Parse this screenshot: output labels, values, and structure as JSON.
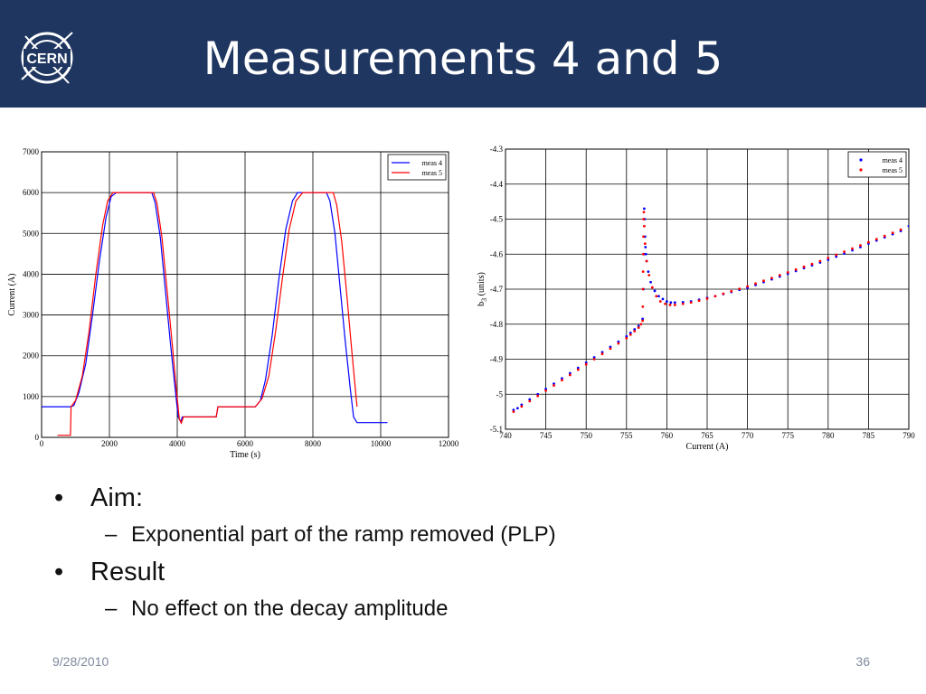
{
  "slide": {
    "title": "Measurements 4 and 5",
    "logo_text": "CERN",
    "footer_date": "9/28/2010",
    "page_number": "36"
  },
  "bullets": [
    {
      "text": "Aim:",
      "sub": "Exponential part of the ramp removed (PLP)"
    },
    {
      "text": "Result",
      "sub": "No effect on the decay amplitude"
    }
  ],
  "colors": {
    "header": "#1f3660",
    "meas4": "#0000ff",
    "meas5": "#ff0000"
  },
  "chart_data": [
    {
      "type": "line",
      "xlabel": "Time (s)",
      "ylabel": "Current (A)",
      "xlim": [
        0,
        12000
      ],
      "ylim": [
        0,
        7000
      ],
      "xticks": [
        0,
        2000,
        4000,
        6000,
        8000,
        10000,
        12000
      ],
      "yticks": [
        0,
        1000,
        2000,
        3000,
        4000,
        5000,
        6000,
        7000
      ],
      "grid": true,
      "legend_position": "top-right",
      "series": [
        {
          "name": "meas 4",
          "color": "#0000ff",
          "x": [
            0,
            850,
            950,
            1100,
            1300,
            1500,
            1700,
            1900,
            2050,
            2200,
            3250,
            3350,
            3500,
            3650,
            3800,
            3950,
            4030,
            4100,
            4150,
            5150,
            5200,
            5300,
            6300,
            6450,
            6600,
            6800,
            7000,
            7200,
            7400,
            7550,
            7650,
            8400,
            8500,
            8650,
            8800,
            8950,
            9100,
            9200,
            9300,
            10200
          ],
          "y": [
            750,
            750,
            780,
            1100,
            1800,
            3000,
            4300,
            5400,
            5900,
            6000,
            6000,
            5750,
            4900,
            3600,
            2300,
            1100,
            500,
            380,
            500,
            500,
            750,
            750,
            750,
            900,
            1400,
            2500,
            3900,
            5100,
            5800,
            6000,
            6000,
            6000,
            5800,
            5000,
            3700,
            2400,
            1200,
            500,
            360,
            360
          ]
        },
        {
          "name": "meas 5",
          "color": "#ff0000",
          "x": [
            470,
            850,
            870,
            1000,
            1200,
            1400,
            1600,
            1800,
            1950,
            2100,
            3300,
            3400,
            3550,
            3700,
            3850,
            3980,
            4060,
            4120,
            4180,
            5150,
            5200,
            5300,
            6300,
            6500,
            6700,
            6900,
            7100,
            7300,
            7500,
            7700,
            8600,
            8700,
            8850,
            9000,
            9150,
            9250,
            9300
          ],
          "y": [
            50,
            50,
            750,
            900,
            1500,
            2600,
            4000,
            5200,
            5800,
            6000,
            6000,
            5750,
            4900,
            3600,
            2300,
            1100,
            450,
            350,
            500,
            500,
            750,
            750,
            750,
            950,
            1500,
            2600,
            3900,
            5100,
            5800,
            6000,
            6000,
            5700,
            4800,
            3500,
            2100,
            1200,
            750
          ]
        }
      ]
    },
    {
      "type": "scatter",
      "xlabel": "Current (A)",
      "ylabel": "b3 (units)",
      "xlim": [
        740,
        790
      ],
      "ylim": [
        -5.1,
        -4.3
      ],
      "xticks": [
        740,
        745,
        750,
        755,
        760,
        765,
        770,
        775,
        780,
        785,
        790
      ],
      "yticks": [
        -5.1,
        -5,
        -4.9,
        -4.8,
        -4.7,
        -4.6,
        -4.5,
        -4.4,
        -4.3
      ],
      "grid": true,
      "legend_position": "top-right",
      "series": [
        {
          "name": "meas 4",
          "color": "#0000ff",
          "x": [
            741,
            741.5,
            742,
            743,
            744,
            745,
            746,
            747,
            748,
            749,
            750,
            751,
            752,
            753,
            754,
            755,
            755.5,
            756,
            756.5,
            757,
            757.1,
            757.15,
            757.2,
            757.25,
            757.3,
            757.35,
            757.4,
            757.5,
            757.7,
            758,
            758.5,
            759,
            759.5,
            760,
            760.5,
            761,
            762,
            763,
            764,
            765,
            766,
            767,
            768,
            769,
            770,
            771,
            772,
            773,
            774,
            775,
            776,
            777,
            778,
            779,
            780,
            781,
            782,
            783,
            784,
            785,
            786,
            787,
            788,
            789,
            790
          ],
          "y": [
            -5.045,
            -5.04,
            -5.03,
            -5.015,
            -5.0,
            -4.985,
            -4.97,
            -4.955,
            -4.94,
            -4.925,
            -4.91,
            -4.895,
            -4.88,
            -4.865,
            -4.85,
            -4.835,
            -4.825,
            -4.815,
            -4.805,
            -4.785,
            -4.7,
            -4.6,
            -4.47,
            -4.5,
            -4.55,
            -4.58,
            -4.6,
            -4.62,
            -4.65,
            -4.68,
            -4.705,
            -4.72,
            -4.728,
            -4.735,
            -4.738,
            -4.738,
            -4.737,
            -4.735,
            -4.73,
            -4.725,
            -4.72,
            -4.714,
            -4.708,
            -4.702,
            -4.696,
            -4.688,
            -4.68,
            -4.672,
            -4.664,
            -4.656,
            -4.648,
            -4.64,
            -4.632,
            -4.624,
            -4.616,
            -4.607,
            -4.598,
            -4.589,
            -4.58,
            -4.57,
            -4.561,
            -4.552,
            -4.543,
            -4.534,
            -4.52
          ]
        },
        {
          "name": "meas 5",
          "color": "#ff0000",
          "x": [
            741,
            742,
            743,
            744,
            745,
            746,
            747,
            748,
            749,
            750,
            751,
            752,
            753,
            754,
            755,
            755.5,
            756,
            756.5,
            756.8,
            757,
            757.02,
            757.04,
            757.06,
            757.08,
            757.1,
            757.12,
            757.15,
            757.2,
            757.3,
            757.5,
            757.8,
            758.2,
            758.7,
            759.2,
            759.8,
            760.4,
            761,
            762,
            763,
            764,
            765,
            766,
            767,
            768,
            769,
            770,
            771,
            772,
            773,
            774,
            775,
            776,
            777,
            778,
            779,
            780,
            781,
            782,
            783,
            784,
            785,
            786,
            787,
            788,
            789
          ],
          "y": [
            -5.05,
            -5.035,
            -5.02,
            -5.005,
            -4.99,
            -4.975,
            -4.96,
            -4.945,
            -4.93,
            -4.915,
            -4.9,
            -4.885,
            -4.87,
            -4.855,
            -4.84,
            -4.83,
            -4.82,
            -4.81,
            -4.8,
            -4.79,
            -4.75,
            -4.7,
            -4.65,
            -4.6,
            -4.55,
            -4.5,
            -4.48,
            -4.52,
            -4.57,
            -4.62,
            -4.66,
            -4.695,
            -4.72,
            -4.735,
            -4.742,
            -4.745,
            -4.745,
            -4.742,
            -4.738,
            -4.733,
            -4.727,
            -4.72,
            -4.713,
            -4.706,
            -4.699,
            -4.692,
            -4.684,
            -4.676,
            -4.668,
            -4.66,
            -4.652,
            -4.644,
            -4.636,
            -4.628,
            -4.62,
            -4.611,
            -4.602,
            -4.593,
            -4.584,
            -4.575,
            -4.566,
            -4.557,
            -4.548,
            -4.539,
            -4.53
          ]
        }
      ]
    }
  ]
}
